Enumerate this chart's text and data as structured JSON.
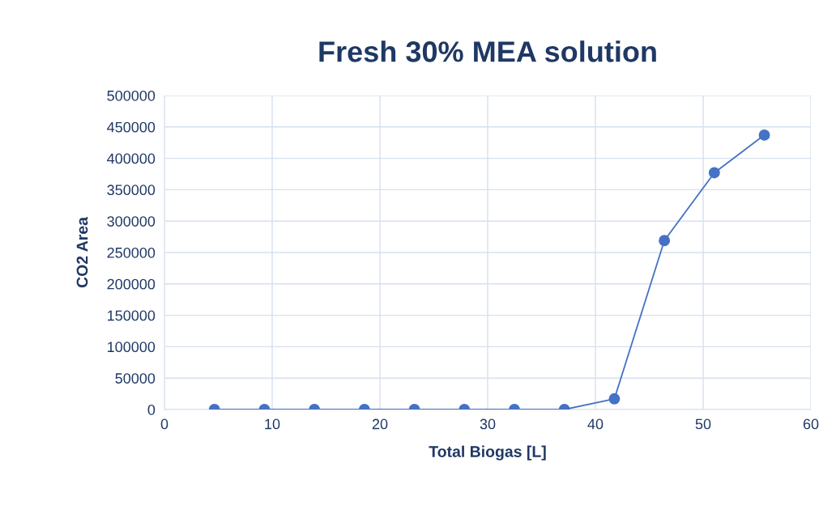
{
  "chart_data": {
    "type": "line",
    "title": "Fresh 30% MEA solution",
    "xlabel": "Total Biogas [L]",
    "ylabel": "CO2 Area",
    "x": [
      4.64,
      9.28,
      13.92,
      18.56,
      23.2,
      27.84,
      32.48,
      37.12,
      41.76,
      46.4,
      51.04,
      55.68
    ],
    "series": [
      {
        "color": "#4472c4",
        "values": [
          0,
          0,
          0,
          0,
          0,
          0,
          0,
          0,
          17000,
          269000,
          377000,
          437000
        ]
      }
    ],
    "xlim": [
      0,
      60
    ],
    "xticks": [
      0,
      10,
      20,
      30,
      40,
      50,
      60
    ],
    "ylim": [
      0,
      500000
    ],
    "yticks": [
      0,
      50000,
      100000,
      150000,
      200000,
      250000,
      300000,
      350000,
      400000,
      450000,
      500000
    ],
    "grid": true,
    "marker": "circle",
    "line_style": "solid"
  }
}
